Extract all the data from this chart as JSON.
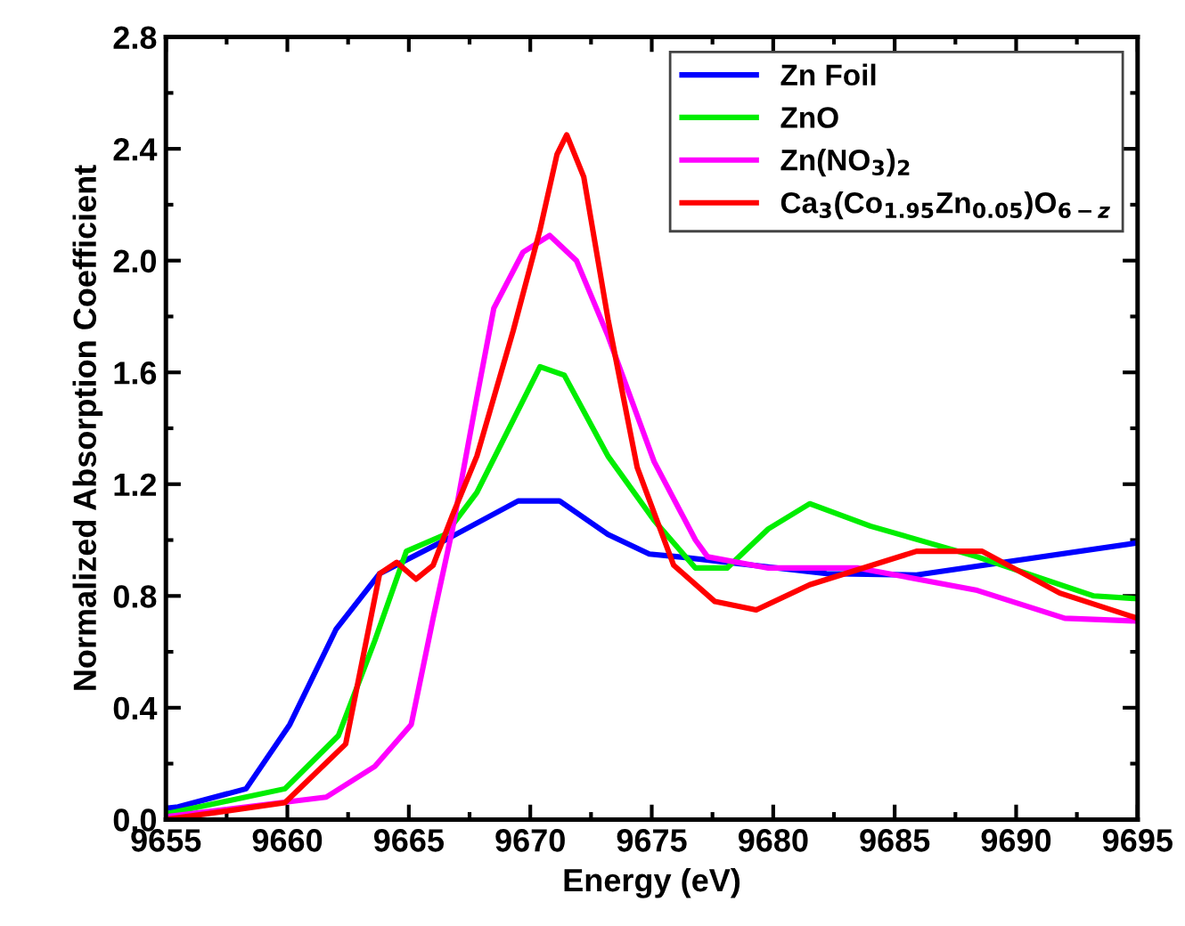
{
  "chart_data": {
    "type": "line",
    "xlabel": "Energy (eV)",
    "ylabel": "Normalized Absorption Coefficient",
    "xlim": [
      9655,
      9695
    ],
    "xticks": [
      9655,
      9660,
      9665,
      9670,
      9675,
      9680,
      9685,
      9690,
      9695
    ],
    "ylim": [
      0.0,
      2.8
    ],
    "yticks": [
      {
        "value": 0.0,
        "label": "0.0"
      },
      {
        "value": 0.4,
        "label": "0.4"
      },
      {
        "value": 0.8,
        "label": "0.8"
      },
      {
        "value": 1.2,
        "label": "1.2"
      },
      {
        "value": 1.6,
        "label": "1.6"
      },
      {
        "value": 2.0,
        "label": "2.0"
      },
      {
        "value": 2.4,
        "label": "2.4"
      },
      {
        "value": 2.8,
        "label": "2.8"
      }
    ],
    "grid": false,
    "legend": "top right",
    "marker": "none",
    "line_style": "solid",
    "series": [
      {
        "name": "Zn Foil",
        "color": "#0000ff",
        "x": [
          9655,
          9655.5,
          9658.3,
          9660.1,
          9662,
          9663.8,
          9666.5,
          9669.5,
          9671.2,
          9673.2,
          9674.9,
          9676.1,
          9682.2,
          9685.9,
          9695
        ],
        "values": [
          0.04,
          0.045,
          0.11,
          0.34,
          0.68,
          0.88,
          1.0,
          1.14,
          1.14,
          1.02,
          0.95,
          0.94,
          0.88,
          0.875,
          0.99
        ]
      },
      {
        "name": "ZnO",
        "color": "#00ee00",
        "x": [
          9655,
          9659.9,
          9662.1,
          9663.6,
          9664.9,
          9666.5,
          9667.8,
          9669.3,
          9670.4,
          9671.4,
          9673.2,
          9675.1,
          9676.8,
          9678.1,
          9679.8,
          9681.5,
          9684,
          9688.4,
          9693.2,
          9695
        ],
        "values": [
          0.02,
          0.11,
          0.3,
          0.64,
          0.96,
          1.02,
          1.17,
          1.43,
          1.62,
          1.59,
          1.3,
          1.07,
          0.9,
          0.9,
          1.04,
          1.13,
          1.05,
          0.94,
          0.8,
          0.79
        ]
      },
      {
        "name": "Zn(NO$_{3}$)$_{2}$",
        "color": "#ff00ff",
        "x": [
          9655,
          9661.6,
          9663.6,
          9665.1,
          9666,
          9666.8,
          9667.8,
          9668.5,
          9669.7,
          9670.8,
          9671.9,
          9673.2,
          9675.1,
          9676.8,
          9677.3,
          9679.8,
          9683.5,
          9688.4,
          9692,
          9695
        ],
        "values": [
          0.01,
          0.08,
          0.19,
          0.34,
          0.72,
          1.04,
          1.51,
          1.83,
          2.03,
          2.09,
          2.0,
          1.73,
          1.28,
          1.0,
          0.94,
          0.9,
          0.9,
          0.82,
          0.72,
          0.71
        ]
      },
      {
        "name": "Ca$_{3}$(Co$_{1.95}$Zn$_{0.05}$)O$_{6−z}$",
        "color": "#ff0000",
        "x": [
          9655,
          9659.9,
          9662.4,
          9663.8,
          9664.5,
          9665.3,
          9666,
          9666.8,
          9667.8,
          9669.3,
          9670.4,
          9671.1,
          9671.5,
          9672.2,
          9673.2,
          9674.4,
          9675.9,
          9677.6,
          9679.3,
          9681.5,
          9685.9,
          9688.6,
          9691.8,
          9695
        ],
        "values": [
          0.0,
          0.06,
          0.27,
          0.88,
          0.92,
          0.86,
          0.91,
          1.09,
          1.3,
          1.75,
          2.11,
          2.38,
          2.45,
          2.3,
          1.79,
          1.26,
          0.91,
          0.78,
          0.75,
          0.84,
          0.96,
          0.96,
          0.81,
          0.72
        ]
      }
    ]
  }
}
